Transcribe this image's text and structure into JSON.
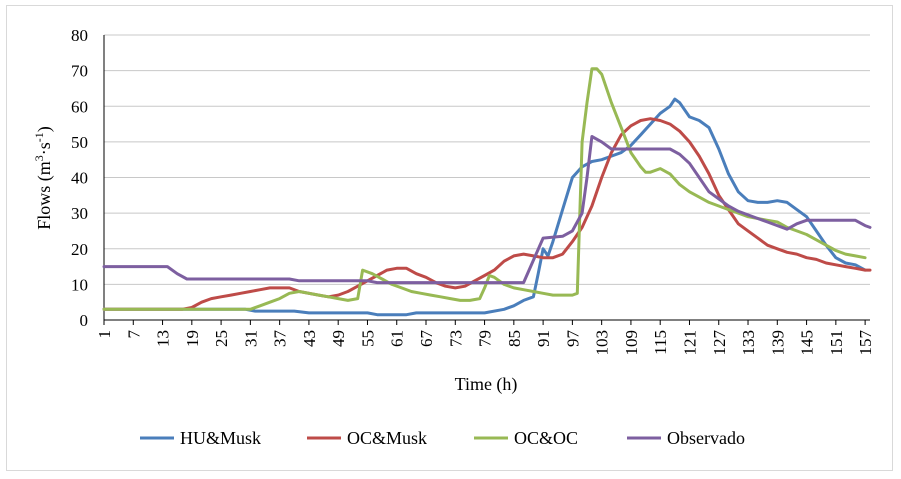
{
  "chart_data": {
    "type": "line",
    "xlabel": "Time (h)",
    "ylabel_main": "Flows (m",
    "ylabel_sup1": "3",
    "ylabel_mid": "·s",
    "ylabel_sup2": "-1",
    "ylabel_end": ")",
    "ylim": [
      0,
      80
    ],
    "yticks": [
      0,
      10,
      20,
      30,
      40,
      50,
      60,
      70,
      80
    ],
    "xlim": [
      1,
      158
    ],
    "xticks": [
      1,
      7,
      13,
      19,
      25,
      31,
      37,
      43,
      49,
      55,
      61,
      67,
      73,
      79,
      85,
      91,
      97,
      103,
      109,
      115,
      121,
      127,
      133,
      139,
      145,
      151,
      157
    ],
    "grid": "horizontal",
    "legend_position": "bottom",
    "series": [
      {
        "name": "HU&Musk",
        "color": "#4a7ebb",
        "points": [
          [
            1,
            3
          ],
          [
            30,
            3
          ],
          [
            32,
            2.5
          ],
          [
            40,
            2.5
          ],
          [
            43,
            2
          ],
          [
            55,
            2
          ],
          [
            57,
            1.5
          ],
          [
            63,
            1.5
          ],
          [
            65,
            2
          ],
          [
            79,
            2
          ],
          [
            83,
            3
          ],
          [
            85,
            4
          ],
          [
            87,
            5.5
          ],
          [
            89,
            6.5
          ],
          [
            90,
            13
          ],
          [
            91,
            20
          ],
          [
            92,
            18
          ],
          [
            93,
            22
          ],
          [
            95,
            31
          ],
          [
            97,
            40
          ],
          [
            99,
            43
          ],
          [
            101,
            44.5
          ],
          [
            103,
            45
          ],
          [
            105,
            46
          ],
          [
            107,
            47
          ],
          [
            109,
            49
          ],
          [
            111,
            52
          ],
          [
            113,
            55
          ],
          [
            115,
            58
          ],
          [
            117,
            60
          ],
          [
            118,
            62
          ],
          [
            119,
            61
          ],
          [
            121,
            57
          ],
          [
            123,
            56
          ],
          [
            125,
            54
          ],
          [
            127,
            48
          ],
          [
            129,
            41
          ],
          [
            131,
            36
          ],
          [
            133,
            33.5
          ],
          [
            135,
            33
          ],
          [
            137,
            33
          ],
          [
            139,
            33.5
          ],
          [
            141,
            33
          ],
          [
            143,
            31
          ],
          [
            145,
            29
          ],
          [
            147,
            25
          ],
          [
            149,
            21
          ],
          [
            151,
            17.5
          ],
          [
            153,
            16
          ],
          [
            155,
            15.5
          ],
          [
            157,
            14
          ]
        ]
      },
      {
        "name": "OC&Musk",
        "color": "#be4b48",
        "points": [
          [
            1,
            3
          ],
          [
            17,
            3
          ],
          [
            19,
            3.5
          ],
          [
            21,
            5
          ],
          [
            23,
            6
          ],
          [
            25,
            6.5
          ],
          [
            27,
            7
          ],
          [
            29,
            7.5
          ],
          [
            31,
            8
          ],
          [
            33,
            8.5
          ],
          [
            35,
            9
          ],
          [
            39,
            9
          ],
          [
            41,
            8
          ],
          [
            45,
            7
          ],
          [
            47,
            6.5
          ],
          [
            49,
            7
          ],
          [
            51,
            8
          ],
          [
            53,
            9.5
          ],
          [
            55,
            11
          ],
          [
            57,
            12.5
          ],
          [
            59,
            14
          ],
          [
            61,
            14.5
          ],
          [
            63,
            14.5
          ],
          [
            65,
            13
          ],
          [
            67,
            12
          ],
          [
            69,
            10.5
          ],
          [
            71,
            9.5
          ],
          [
            73,
            9
          ],
          [
            75,
            9.5
          ],
          [
            77,
            11
          ],
          [
            79,
            12.5
          ],
          [
            81,
            14
          ],
          [
            83,
            16.5
          ],
          [
            85,
            18
          ],
          [
            87,
            18.5
          ],
          [
            89,
            18
          ],
          [
            91,
            17.5
          ],
          [
            93,
            17.5
          ],
          [
            95,
            18.5
          ],
          [
            97,
            22
          ],
          [
            99,
            26
          ],
          [
            101,
            32
          ],
          [
            103,
            40
          ],
          [
            105,
            47
          ],
          [
            107,
            52
          ],
          [
            109,
            54.5
          ],
          [
            111,
            56
          ],
          [
            113,
            56.5
          ],
          [
            115,
            56
          ],
          [
            117,
            55
          ],
          [
            119,
            53
          ],
          [
            121,
            50
          ],
          [
            123,
            46
          ],
          [
            125,
            41
          ],
          [
            127,
            35
          ],
          [
            129,
            31
          ],
          [
            131,
            27
          ],
          [
            133,
            25
          ],
          [
            135,
            23
          ],
          [
            137,
            21
          ],
          [
            139,
            20
          ],
          [
            141,
            19
          ],
          [
            143,
            18.5
          ],
          [
            145,
            17.5
          ],
          [
            147,
            17
          ],
          [
            149,
            16
          ],
          [
            151,
            15.5
          ],
          [
            153,
            15
          ],
          [
            155,
            14.5
          ],
          [
            157,
            14
          ],
          [
            158,
            14
          ]
        ]
      },
      {
        "name": "OC&OC",
        "color": "#98b954",
        "points": [
          [
            1,
            3
          ],
          [
            31,
            3
          ],
          [
            33,
            4
          ],
          [
            35,
            5
          ],
          [
            37,
            6
          ],
          [
            39,
            7.5
          ],
          [
            41,
            8
          ],
          [
            43,
            7.5
          ],
          [
            45,
            7
          ],
          [
            47,
            6.5
          ],
          [
            49,
            6
          ],
          [
            51,
            5.5
          ],
          [
            53,
            6
          ],
          [
            54,
            14
          ],
          [
            56,
            13
          ],
          [
            58,
            11.5
          ],
          [
            60,
            10
          ],
          [
            62,
            9
          ],
          [
            64,
            8
          ],
          [
            66,
            7.5
          ],
          [
            68,
            7
          ],
          [
            70,
            6.5
          ],
          [
            72,
            6
          ],
          [
            74,
            5.5
          ],
          [
            76,
            5.5
          ],
          [
            78,
            6
          ],
          [
            79,
            9
          ],
          [
            80,
            12.5
          ],
          [
            81,
            12
          ],
          [
            83,
            10
          ],
          [
            85,
            9
          ],
          [
            87,
            8.5
          ],
          [
            89,
            8
          ],
          [
            91,
            7.5
          ],
          [
            93,
            7
          ],
          [
            95,
            7
          ],
          [
            97,
            7
          ],
          [
            98,
            7.5
          ],
          [
            99,
            50
          ],
          [
            100,
            61
          ],
          [
            101,
            70.5
          ],
          [
            102,
            70.5
          ],
          [
            103,
            69
          ],
          [
            105,
            61
          ],
          [
            107,
            54
          ],
          [
            109,
            47
          ],
          [
            111,
            43
          ],
          [
            112,
            41.5
          ],
          [
            113,
            41.5
          ],
          [
            115,
            42.5
          ],
          [
            117,
            41
          ],
          [
            119,
            38
          ],
          [
            121,
            36
          ],
          [
            123,
            34.5
          ],
          [
            125,
            33
          ],
          [
            127,
            32
          ],
          [
            129,
            31
          ],
          [
            131,
            30
          ],
          [
            133,
            29
          ],
          [
            135,
            28.5
          ],
          [
            137,
            28
          ],
          [
            139,
            27.5
          ],
          [
            141,
            26
          ],
          [
            143,
            25
          ],
          [
            145,
            24
          ],
          [
            147,
            22.5
          ],
          [
            149,
            21
          ],
          [
            151,
            19.5
          ],
          [
            153,
            18.5
          ],
          [
            155,
            18
          ],
          [
            157,
            17.5
          ]
        ]
      },
      {
        "name": "Observado",
        "color": "#7d5fa0",
        "points": [
          [
            1,
            15
          ],
          [
            14,
            15
          ],
          [
            16,
            13
          ],
          [
            18,
            11.5
          ],
          [
            39,
            11.5
          ],
          [
            41,
            11
          ],
          [
            55,
            11
          ],
          [
            57,
            10.5
          ],
          [
            87,
            10.5
          ],
          [
            91,
            23
          ],
          [
            95,
            23.5
          ],
          [
            97,
            25
          ],
          [
            99,
            30
          ],
          [
            100,
            40
          ],
          [
            101,
            51.5
          ],
          [
            103,
            50
          ],
          [
            105,
            48
          ],
          [
            107,
            48
          ],
          [
            117,
            48
          ],
          [
            119,
            46.5
          ],
          [
            121,
            44
          ],
          [
            123,
            40
          ],
          [
            125,
            36
          ],
          [
            127,
            34
          ],
          [
            129,
            32
          ],
          [
            131,
            30.5
          ],
          [
            133,
            29.5
          ],
          [
            135,
            28.5
          ],
          [
            137,
            27.5
          ],
          [
            139,
            26.5
          ],
          [
            141,
            25.5
          ],
          [
            143,
            27
          ],
          [
            145,
            28
          ],
          [
            155,
            28
          ],
          [
            157,
            26.5
          ],
          [
            158,
            26
          ]
        ]
      }
    ]
  }
}
